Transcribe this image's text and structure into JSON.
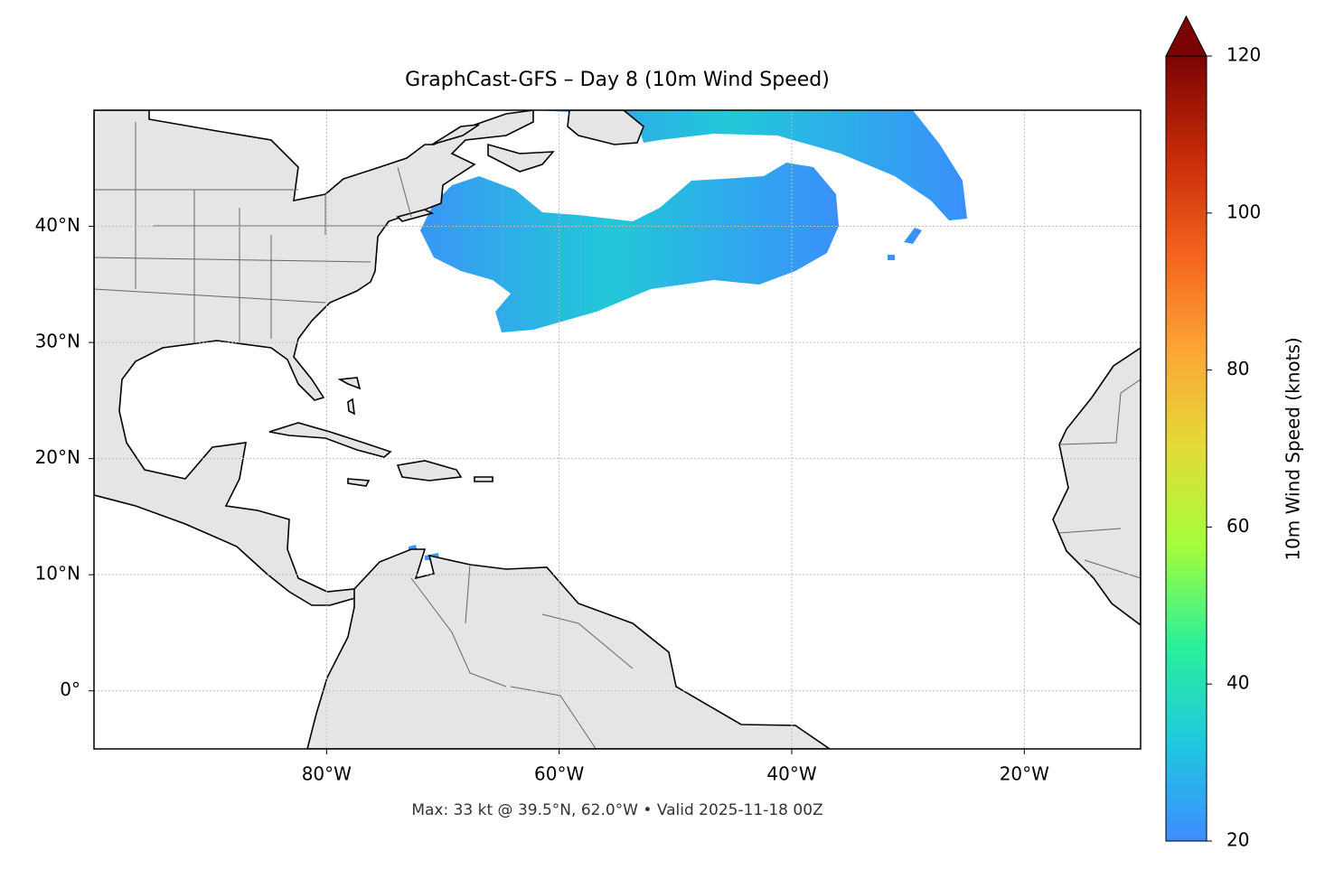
{
  "chart_data": {
    "type": "map",
    "title": "GraphCast-GFS – Day 8 (10m Wind Speed)",
    "footer": "Max: 33 kt @ 39.5°N, 62.0°W • Valid 2025-11-18 00Z",
    "xlim": [
      -100,
      -10
    ],
    "ylim": [
      -5,
      50
    ],
    "xticks": [
      {
        "value": -80,
        "label": "80°W"
      },
      {
        "value": -60,
        "label": "60°W"
      },
      {
        "value": -40,
        "label": "40°W"
      },
      {
        "value": -20,
        "label": "20°W"
      }
    ],
    "yticks": [
      {
        "value": 0,
        "label": "0°"
      },
      {
        "value": 10,
        "label": "10°N"
      },
      {
        "value": 20,
        "label": "20°N"
      },
      {
        "value": 30,
        "label": "30°N"
      },
      {
        "value": 40,
        "label": "40°N"
      }
    ],
    "grid": true,
    "colorbar": {
      "label": "10m Wind Speed (knots)",
      "lim": [
        20,
        120
      ],
      "ticks": [
        20,
        40,
        60,
        80,
        100,
        120
      ],
      "colors": [
        "#3f8cff",
        "#1fc8de",
        "#2af09a",
        "#a4fc3c",
        "#e2dc38",
        "#fca636",
        "#f3621c",
        "#c52a08",
        "#7a0403"
      ]
    }
  }
}
